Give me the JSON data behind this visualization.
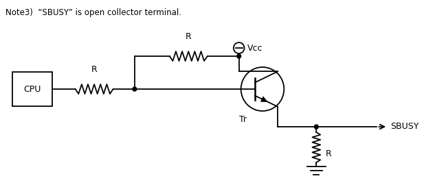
{
  "title_note": "Note3)  “SBUSY” is open collector terminal.",
  "bg_color": "#ffffff",
  "line_color": "#000000",
  "line_width": 1.3,
  "cpu_label": "CPU",
  "resistor_label": "R",
  "transistor_label": "Tr",
  "vcc_label": "Vcc",
  "sbusy_label": "SBUSY",
  "figsize": [
    6.17,
    2.7
  ],
  "dpi": 100
}
